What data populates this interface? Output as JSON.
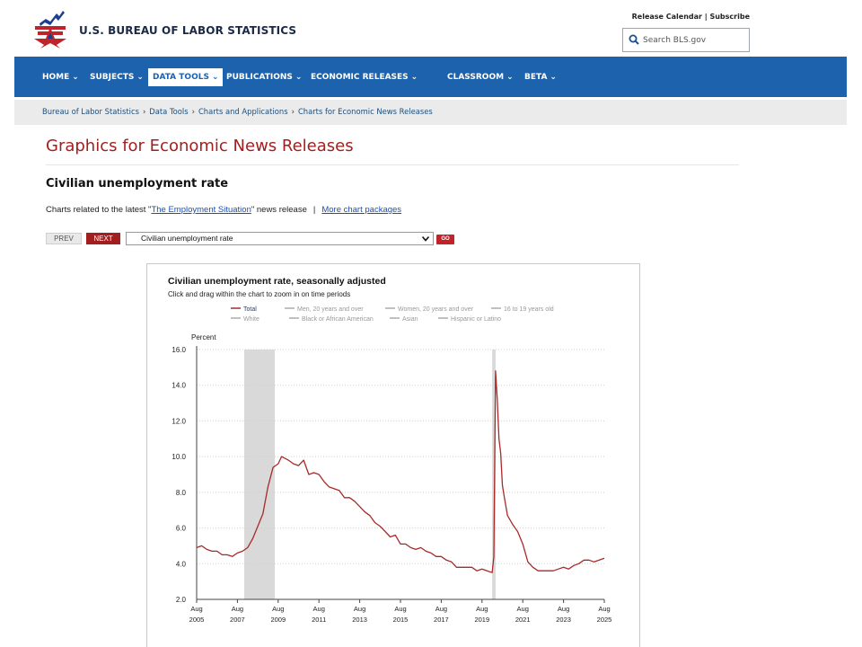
{
  "header": {
    "site_title": "U.S. BUREAU OF LABOR STATISTICS",
    "util_release_calendar": "Release Calendar",
    "util_sep": " | ",
    "util_subscribe": "Subscribe",
    "search_placeholder": "Search BLS.gov",
    "logo_colors": {
      "blue": "#1c3f8f",
      "red": "#c0242a"
    }
  },
  "nav": {
    "items": [
      {
        "label": "HOME"
      },
      {
        "label": "SUBJECTS"
      },
      {
        "label": "DATA TOOLS",
        "active": true
      },
      {
        "label": "PUBLICATIONS"
      },
      {
        "label": "ECONOMIC RELEASES"
      },
      {
        "label": "CLASSROOM"
      },
      {
        "label": "BETA"
      }
    ],
    "bg_color": "#1c62ac"
  },
  "breadcrumb": [
    "Bureau of Labor Statistics",
    "Data Tools",
    "Charts and Applications",
    "Charts for Economic News Releases"
  ],
  "page_title": "Graphics for Economic News Releases",
  "section_title": "Civilian unemployment rate",
  "related": {
    "prefix": "Charts related to the latest \"",
    "link": "The Employment Situation",
    "suffix": "\" news release",
    "pipe": "|",
    "more": "More chart packages"
  },
  "controls": {
    "prev": "PREV",
    "next": "NEXT",
    "select_value": "Civilian unemployment rate",
    "go": "GO"
  },
  "chart_data": {
    "type": "line",
    "title": "Civilian unemployment rate, seasonally adjusted",
    "subtitle": "Click and drag within the chart to zoom in on time periods",
    "ylabel": "Percent",
    "ylim": [
      2.0,
      16.0
    ],
    "yticks": [
      "16.0",
      "14.0",
      "12.0",
      "10.0",
      "8.0",
      "6.0",
      "4.0",
      "2.0"
    ],
    "xticks": [
      {
        "month": "Aug",
        "year": "2005"
      },
      {
        "month": "Aug",
        "year": "2007"
      },
      {
        "month": "Aug",
        "year": "2009"
      },
      {
        "month": "Aug",
        "year": "2011"
      },
      {
        "month": "Aug",
        "year": "2013"
      },
      {
        "month": "Aug",
        "year": "2015"
      },
      {
        "month": "Aug",
        "year": "2017"
      },
      {
        "month": "Aug",
        "year": "2019"
      },
      {
        "month": "Aug",
        "year": "2021"
      },
      {
        "month": "Aug",
        "year": "2023"
      },
      {
        "month": "Aug",
        "year": "2025"
      }
    ],
    "xrange": [
      "2005-08",
      "2025-08"
    ],
    "legend_row1": [
      {
        "name": "Total",
        "active": true
      },
      {
        "name": "Men, 20 years and over"
      },
      {
        "name": "Women, 20 years and over"
      },
      {
        "name": "16 to 19 years old"
      }
    ],
    "legend_row2": [
      {
        "name": "White"
      },
      {
        "name": "Black or African American"
      },
      {
        "name": "Asian"
      },
      {
        "name": "Hispanic or Latino"
      }
    ],
    "recessions": [
      [
        "2007-12",
        "2009-06"
      ],
      [
        "2020-02",
        "2020-04"
      ]
    ],
    "series": [
      {
        "name": "Total",
        "color": "#a82a2a",
        "points": [
          [
            "2005-08",
            4.9
          ],
          [
            "2005-11",
            5.0
          ],
          [
            "2006-02",
            4.8
          ],
          [
            "2006-05",
            4.7
          ],
          [
            "2006-08",
            4.7
          ],
          [
            "2006-11",
            4.5
          ],
          [
            "2007-02",
            4.5
          ],
          [
            "2007-05",
            4.4
          ],
          [
            "2007-08",
            4.6
          ],
          [
            "2007-11",
            4.7
          ],
          [
            "2008-02",
            4.9
          ],
          [
            "2008-05",
            5.4
          ],
          [
            "2008-08",
            6.1
          ],
          [
            "2008-11",
            6.8
          ],
          [
            "2009-02",
            8.3
          ],
          [
            "2009-05",
            9.4
          ],
          [
            "2009-08",
            9.6
          ],
          [
            "2009-10",
            10.0
          ],
          [
            "2010-02",
            9.8
          ],
          [
            "2010-05",
            9.6
          ],
          [
            "2010-08",
            9.5
          ],
          [
            "2010-11",
            9.8
          ],
          [
            "2011-02",
            9.0
          ],
          [
            "2011-05",
            9.1
          ],
          [
            "2011-08",
            9.0
          ],
          [
            "2011-11",
            8.6
          ],
          [
            "2012-02",
            8.3
          ],
          [
            "2012-05",
            8.2
          ],
          [
            "2012-08",
            8.1
          ],
          [
            "2012-11",
            7.7
          ],
          [
            "2013-02",
            7.7
          ],
          [
            "2013-05",
            7.5
          ],
          [
            "2013-08",
            7.2
          ],
          [
            "2013-11",
            6.9
          ],
          [
            "2014-02",
            6.7
          ],
          [
            "2014-05",
            6.3
          ],
          [
            "2014-08",
            6.1
          ],
          [
            "2014-11",
            5.8
          ],
          [
            "2015-02",
            5.5
          ],
          [
            "2015-05",
            5.6
          ],
          [
            "2015-08",
            5.1
          ],
          [
            "2015-11",
            5.1
          ],
          [
            "2016-02",
            4.9
          ],
          [
            "2016-05",
            4.8
          ],
          [
            "2016-08",
            4.9
          ],
          [
            "2016-11",
            4.7
          ],
          [
            "2017-02",
            4.6
          ],
          [
            "2017-05",
            4.4
          ],
          [
            "2017-08",
            4.4
          ],
          [
            "2017-11",
            4.2
          ],
          [
            "2018-02",
            4.1
          ],
          [
            "2018-05",
            3.8
          ],
          [
            "2018-08",
            3.8
          ],
          [
            "2018-11",
            3.8
          ],
          [
            "2019-02",
            3.8
          ],
          [
            "2019-05",
            3.6
          ],
          [
            "2019-08",
            3.7
          ],
          [
            "2019-11",
            3.6
          ],
          [
            "2020-02",
            3.5
          ],
          [
            "2020-03",
            4.4
          ],
          [
            "2020-04",
            14.8
          ],
          [
            "2020-05",
            13.2
          ],
          [
            "2020-06",
            11.0
          ],
          [
            "2020-07",
            10.2
          ],
          [
            "2020-08",
            8.4
          ],
          [
            "2020-09",
            7.8
          ],
          [
            "2020-11",
            6.7
          ],
          [
            "2021-02",
            6.2
          ],
          [
            "2021-05",
            5.8
          ],
          [
            "2021-08",
            5.1
          ],
          [
            "2021-11",
            4.1
          ],
          [
            "2022-02",
            3.8
          ],
          [
            "2022-05",
            3.6
          ],
          [
            "2022-08",
            3.6
          ],
          [
            "2022-11",
            3.6
          ],
          [
            "2023-02",
            3.6
          ],
          [
            "2023-05",
            3.7
          ],
          [
            "2023-08",
            3.8
          ],
          [
            "2023-11",
            3.7
          ],
          [
            "2024-02",
            3.9
          ],
          [
            "2024-05",
            4.0
          ],
          [
            "2024-08",
            4.2
          ],
          [
            "2024-11",
            4.2
          ],
          [
            "2025-02",
            4.1
          ],
          [
            "2025-05",
            4.2
          ],
          [
            "2025-08",
            4.3
          ]
        ]
      }
    ],
    "grid": "horizontal-dotted",
    "legend_position": "top"
  }
}
